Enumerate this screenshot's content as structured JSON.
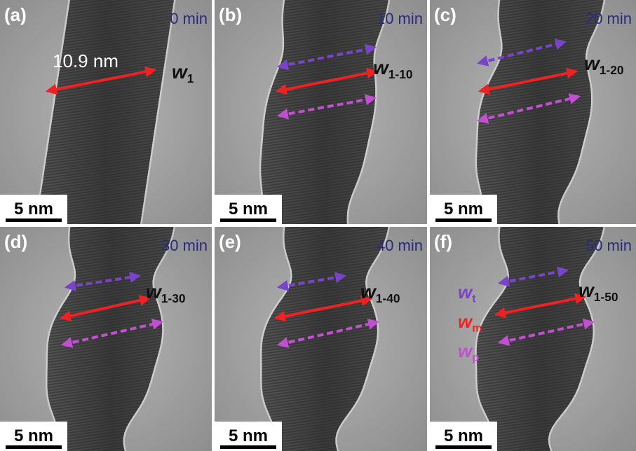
{
  "panels": [
    {
      "label": "(a)",
      "time": "0 min",
      "width_label": {
        "main": "w",
        "sub": "1"
      },
      "scale_bar": "5 nm",
      "annotation": "10.9 nm"
    },
    {
      "label": "(b)",
      "time": "10 min",
      "width_label": {
        "main": "w",
        "sub": "1-10"
      },
      "scale_bar": "5 nm"
    },
    {
      "label": "(c)",
      "time": "20 min",
      "width_label": {
        "main": "w",
        "sub": "1-20"
      },
      "scale_bar": "5 nm"
    },
    {
      "label": "(d)",
      "time": "30 min",
      "width_label": {
        "main": "w",
        "sub": "1-30"
      },
      "scale_bar": "5 nm"
    },
    {
      "label": "(e)",
      "time": "40 min",
      "width_label": {
        "main": "w",
        "sub": "1-40"
      },
      "scale_bar": "5 nm"
    },
    {
      "label": "(f)",
      "time": "50 min",
      "width_label": {
        "main": "w",
        "sub": "1-50"
      },
      "scale_bar": "5 nm",
      "legend": [
        {
          "main": "w",
          "sub": "t"
        },
        {
          "main": "w",
          "sub": "m"
        },
        {
          "main": "w",
          "sub": "p"
        }
      ]
    }
  ]
}
